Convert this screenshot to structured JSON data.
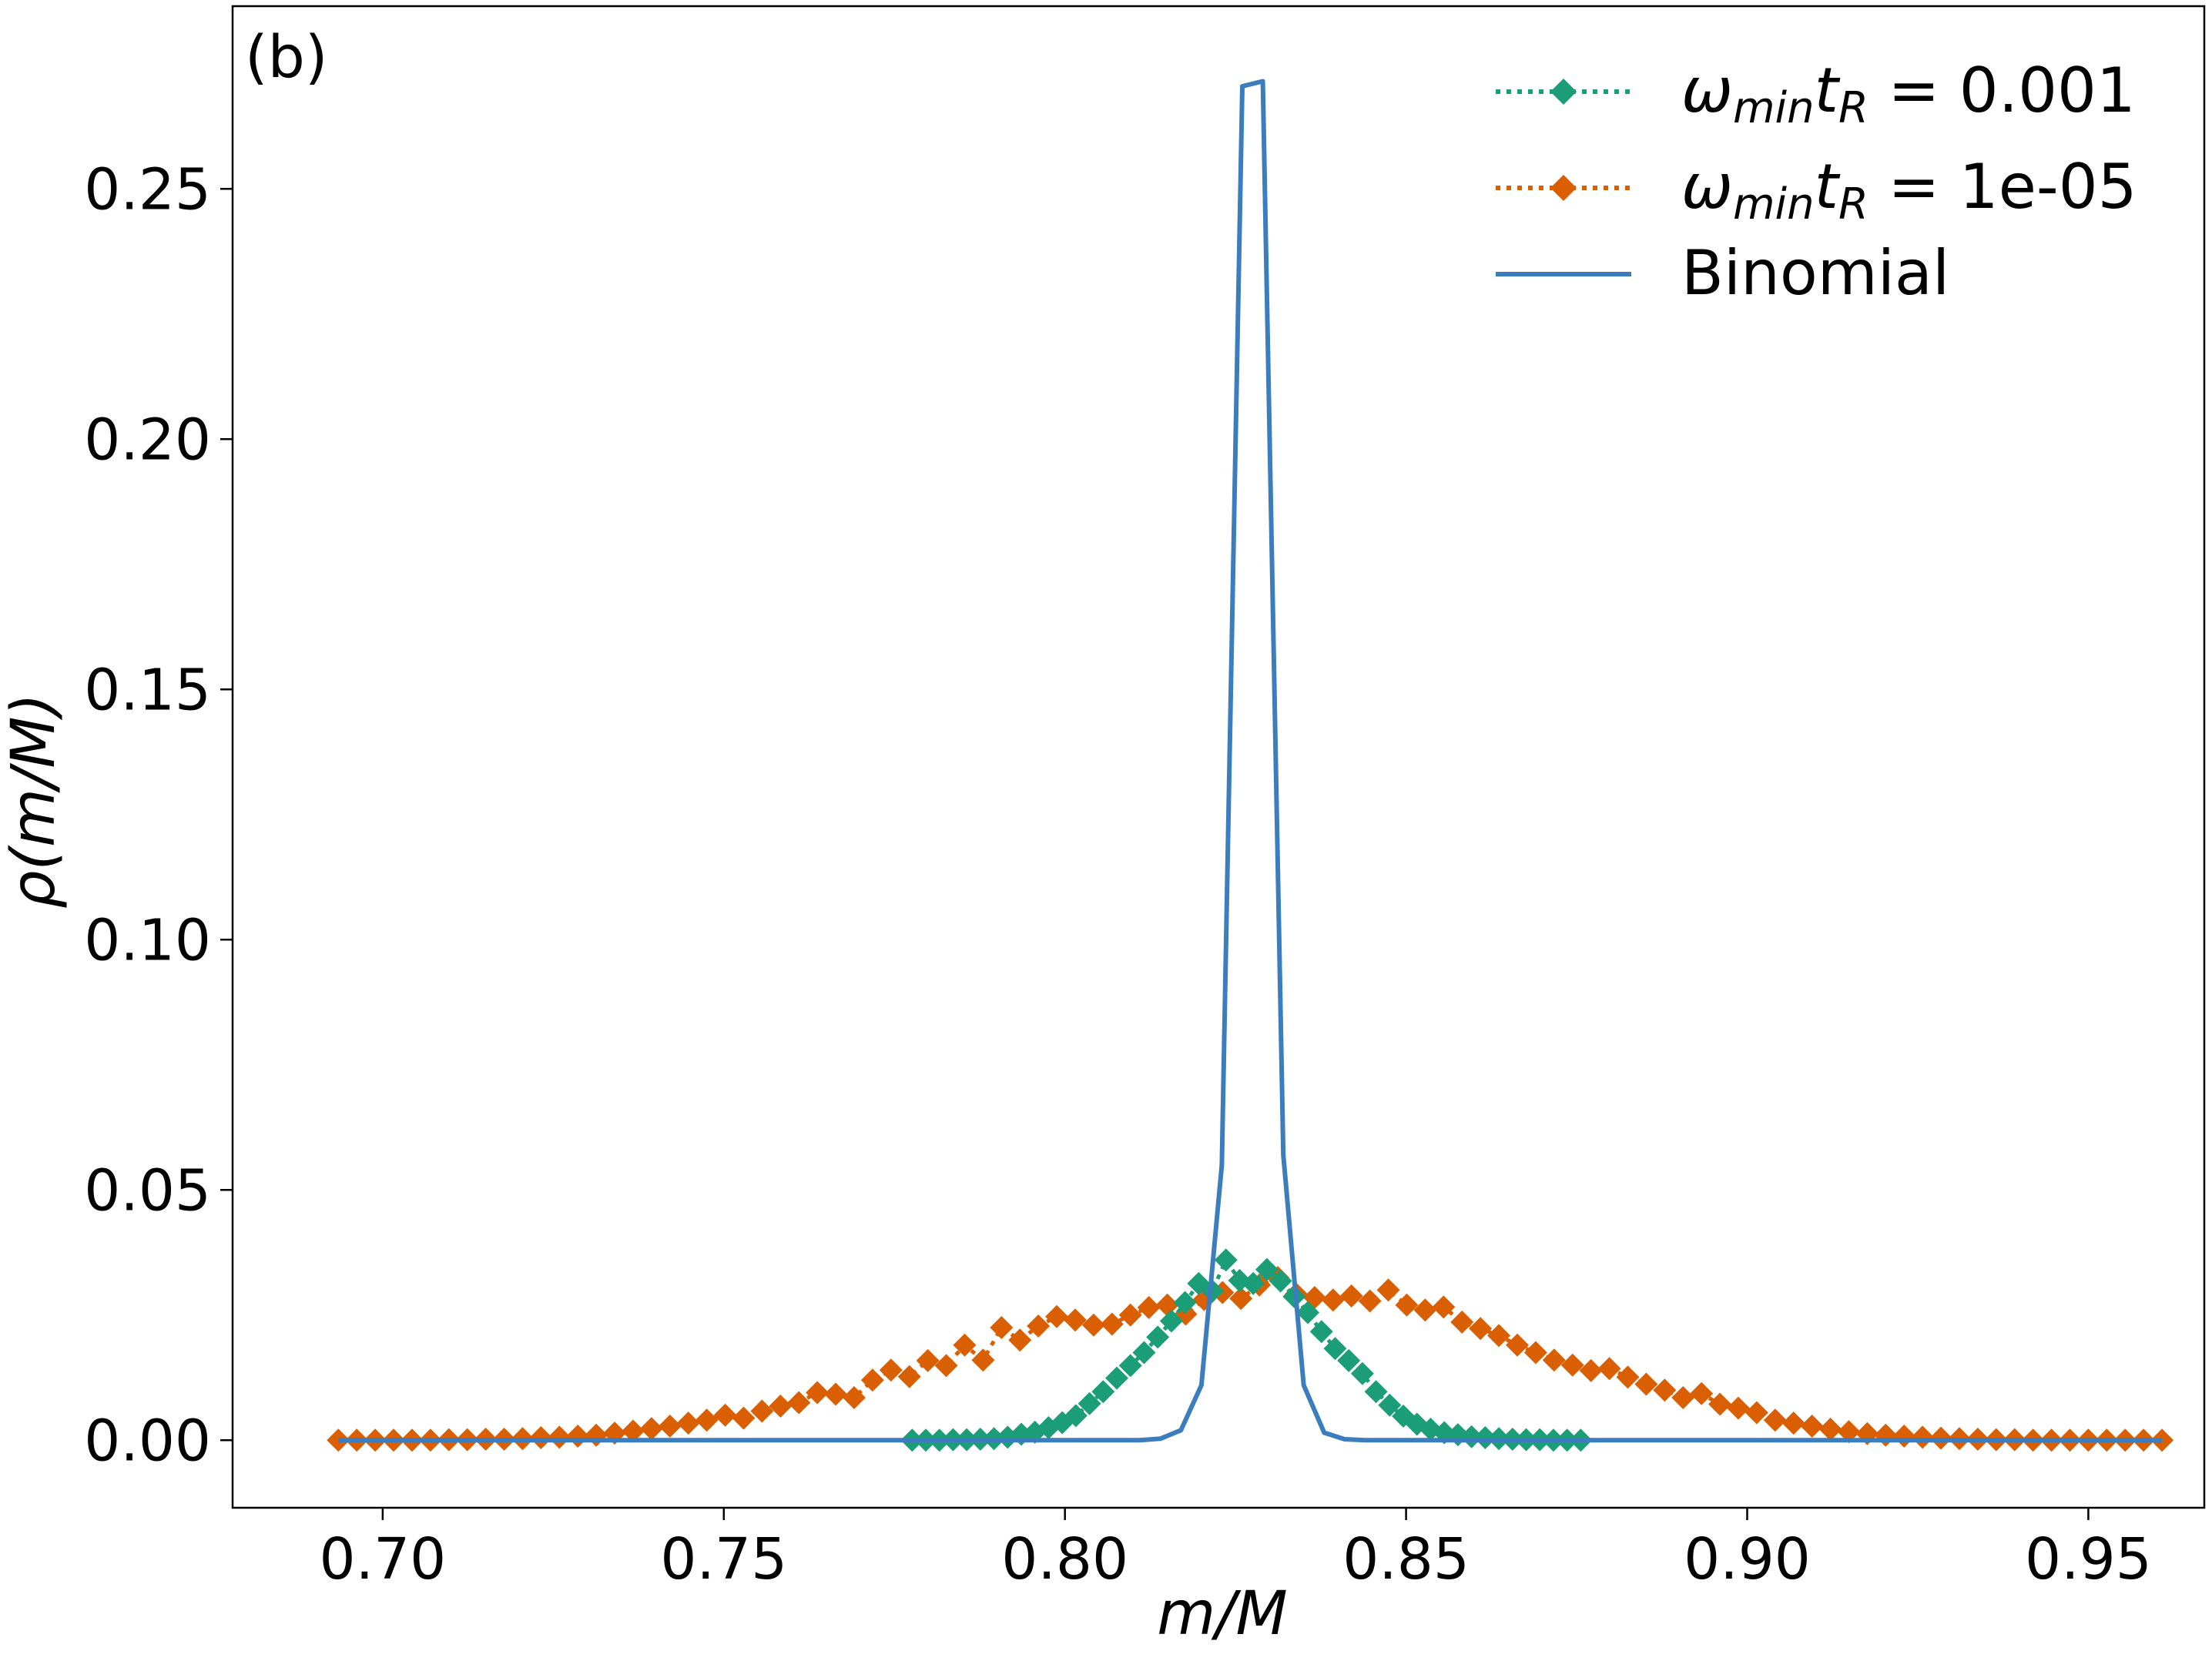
{
  "panel_label": "(b)",
  "chart_data": {
    "type": "line",
    "panel_label": "(b)",
    "xlabel": "m/M",
    "ylabel": "ρ(m/M)",
    "xlim": [
      0.678,
      0.967
    ],
    "ylim": [
      -0.0135,
      0.2865
    ],
    "xticks": [
      0.7,
      0.75,
      0.8,
      0.85,
      0.9,
      0.95
    ],
    "xtick_labels": [
      "0.70",
      "0.75",
      "0.80",
      "0.85",
      "0.90",
      "0.95"
    ],
    "yticks": [
      0.0,
      0.05,
      0.1,
      0.15,
      0.2,
      0.25
    ],
    "ytick_labels": [
      "0.00",
      "0.05",
      "0.10",
      "0.15",
      "0.20",
      "0.25"
    ],
    "grid": false,
    "legend_position": "top-right",
    "series": [
      {
        "name": "ω_min t_R = 0.001",
        "legend_prefix": "ω",
        "legend_sub1": "min",
        "legend_mid": "t",
        "legend_sub2": "R",
        "legend_value": " = 0.001",
        "color": "#1b9e77",
        "linestyle": "dotted",
        "marker": "diamond",
        "x": [
          0.7776,
          0.7796,
          0.7816,
          0.7836,
          0.7856,
          0.7876,
          0.7896,
          0.7916,
          0.7936,
          0.7956,
          0.7976,
          0.7996,
          0.8016,
          0.8036,
          0.8056,
          0.8076,
          0.8096,
          0.8116,
          0.8136,
          0.8156,
          0.8176,
          0.8196,
          0.8216,
          0.8236,
          0.8256,
          0.8276,
          0.8296,
          0.8316,
          0.8336,
          0.8356,
          0.8376,
          0.8396,
          0.8416,
          0.8436,
          0.8456,
          0.8476,
          0.8496,
          0.8516,
          0.8536,
          0.8556,
          0.8576,
          0.8596,
          0.8616,
          0.8636,
          0.8656,
          0.8676,
          0.8696,
          0.8716,
          0.8736,
          0.8756
        ],
        "y": [
          0.0,
          0.0,
          0.0,
          0.0001,
          0.0001,
          0.0002,
          0.0003,
          0.0006,
          0.0012,
          0.0016,
          0.0025,
          0.0035,
          0.0049,
          0.0073,
          0.0097,
          0.0124,
          0.0149,
          0.0175,
          0.0206,
          0.0238,
          0.0275,
          0.0313,
          0.0298,
          0.036,
          0.0319,
          0.0313,
          0.0341,
          0.0318,
          0.0287,
          0.0255,
          0.0217,
          0.0183,
          0.0159,
          0.0133,
          0.0097,
          0.007,
          0.0048,
          0.0032,
          0.0022,
          0.0015,
          0.0011,
          0.0007,
          0.0005,
          0.0003,
          0.0002,
          0.0001,
          0.0001,
          0.0,
          0.0,
          0.0
        ]
      },
      {
        "name": "ω_min t_R = 1e-05",
        "legend_prefix": "ω",
        "legend_sub1": "min",
        "legend_mid": "t",
        "legend_sub2": "R",
        "legend_value": " = 1e-05",
        "color": "#d95f02",
        "linestyle": "dotted",
        "marker": "diamond",
        "x": [
          0.6935,
          0.6962,
          0.6989,
          0.7016,
          0.7043,
          0.707,
          0.7097,
          0.7124,
          0.7151,
          0.7178,
          0.7205,
          0.7232,
          0.7259,
          0.7286,
          0.7313,
          0.734,
          0.7367,
          0.7394,
          0.7421,
          0.7448,
          0.7475,
          0.7502,
          0.7529,
          0.7556,
          0.7583,
          0.761,
          0.7637,
          0.7664,
          0.7691,
          0.7718,
          0.7745,
          0.7772,
          0.7799,
          0.7826,
          0.7853,
          0.788,
          0.7907,
          0.7934,
          0.7961,
          0.7988,
          0.8015,
          0.8042,
          0.8069,
          0.8096,
          0.8123,
          0.815,
          0.8177,
          0.8204,
          0.8231,
          0.8258,
          0.8285,
          0.8312,
          0.8339,
          0.8366,
          0.8393,
          0.842,
          0.8447,
          0.8474,
          0.8501,
          0.8528,
          0.8555,
          0.8582,
          0.8609,
          0.8636,
          0.8663,
          0.869,
          0.8717,
          0.8744,
          0.8771,
          0.8798,
          0.8825,
          0.8852,
          0.8879,
          0.8906,
          0.8933,
          0.896,
          0.8987,
          0.9014,
          0.9041,
          0.9068,
          0.9095,
          0.9122,
          0.9149,
          0.9176,
          0.9203,
          0.923,
          0.9257,
          0.9284,
          0.9311,
          0.9338,
          0.9365,
          0.9392,
          0.9419,
          0.9446,
          0.9473,
          0.95,
          0.9527,
          0.9554,
          0.9581,
          0.9608
        ],
        "y": [
          0.0,
          0.0,
          0.0,
          0.0,
          0.0,
          0.0,
          0.0001,
          0.0001,
          0.0002,
          0.0002,
          0.0003,
          0.0005,
          0.0006,
          0.0008,
          0.001,
          0.0014,
          0.0018,
          0.0023,
          0.0028,
          0.0034,
          0.004,
          0.005,
          0.0044,
          0.0058,
          0.0068,
          0.0075,
          0.0095,
          0.0092,
          0.0085,
          0.012,
          0.014,
          0.0127,
          0.0159,
          0.0149,
          0.019,
          0.016,
          0.0225,
          0.02,
          0.0228,
          0.0247,
          0.024,
          0.023,
          0.0232,
          0.025,
          0.0265,
          0.027,
          0.0252,
          0.0281,
          0.0295,
          0.0283,
          0.031,
          0.0325,
          0.0292,
          0.0285,
          0.028,
          0.0288,
          0.0278,
          0.03,
          0.027,
          0.026,
          0.0266,
          0.0236,
          0.0223,
          0.0209,
          0.019,
          0.0175,
          0.016,
          0.015,
          0.0139,
          0.0143,
          0.0126,
          0.0112,
          0.01,
          0.0085,
          0.0093,
          0.0072,
          0.0064,
          0.0055,
          0.004,
          0.0034,
          0.0028,
          0.0022,
          0.0017,
          0.0013,
          0.001,
          0.0008,
          0.0006,
          0.0004,
          0.0003,
          0.0002,
          0.0001,
          0.0001,
          0.0,
          0.0,
          0.0,
          0.0,
          0.0,
          0.0,
          0.0,
          0.0
        ]
      },
      {
        "name": "Binomial",
        "color": "#3b7dbd",
        "linestyle": "solid",
        "marker": "none",
        "x": [
          0.6935,
          0.806,
          0.811,
          0.814,
          0.817,
          0.82,
          0.823,
          0.826,
          0.829,
          0.832,
          0.835,
          0.838,
          0.841,
          0.844,
          0.85,
          0.9608
        ],
        "y": [
          0.0,
          0.0,
          0.0,
          0.0003,
          0.002,
          0.011,
          0.055,
          0.2705,
          0.2715,
          0.057,
          0.011,
          0.0015,
          0.0002,
          0.0,
          0.0,
          0.0
        ]
      }
    ]
  }
}
